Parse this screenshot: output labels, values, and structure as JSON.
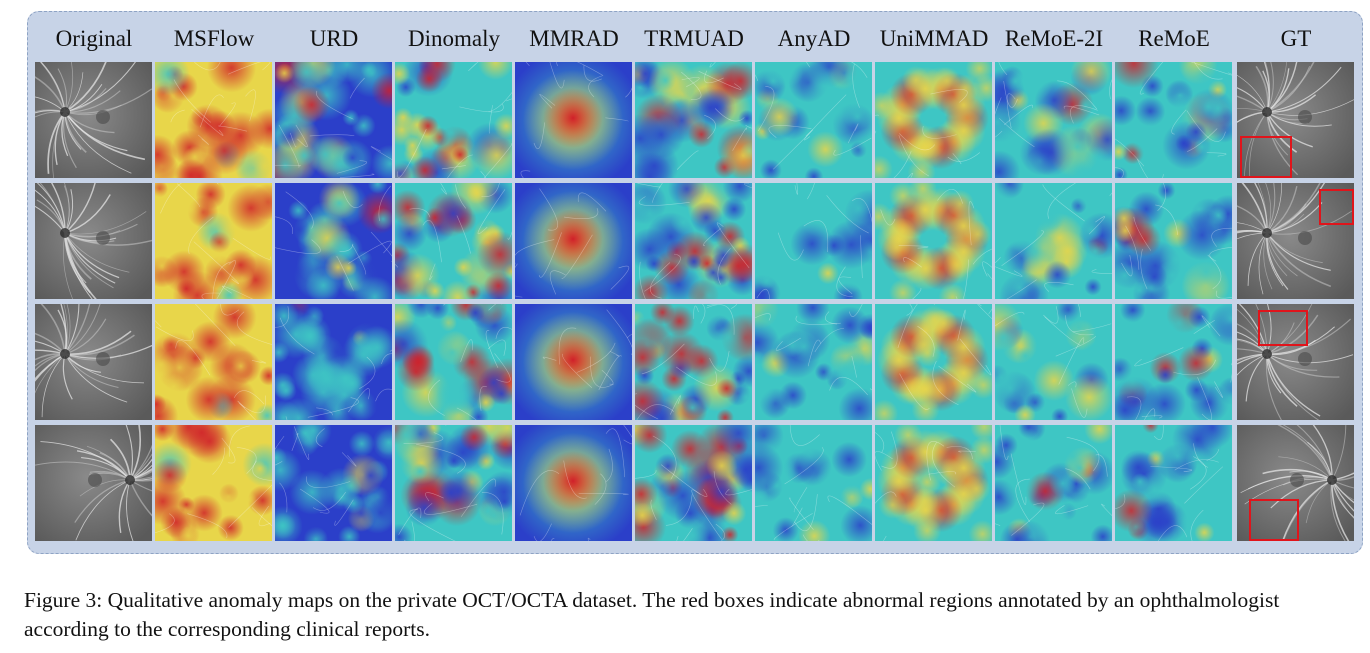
{
  "figure": {
    "columns": [
      "Original",
      "MSFlow",
      "URD",
      "Dinomaly",
      "MMRAD",
      "TRMUAD",
      "AnyAD",
      "UniMMAD",
      "ReMoE-2I",
      "ReMoE",
      "GT"
    ],
    "rows": 4,
    "caption": "Figure 3: Qualitative anomaly maps on the private OCT/OCTA dataset. The red boxes indicate abnormal regions annotated by an ophthalmologist according to the corresponding clinical reports.",
    "colors": {
      "panel_background": "#c7d3e7",
      "panel_border": "#8ea3c4",
      "annotation_box": "#e0141b",
      "heat_low": "#2b3fc9",
      "heat_mid": "#3ec6c4",
      "heat_high": "#e8d64a",
      "heat_peak": "#d0202a"
    },
    "cell_content": {
      "Original": "grayscale-fundus",
      "MSFlow": "heatmap-warm",
      "URD": "heatmap-cool-spots",
      "Dinomaly": "heatmap-mixed",
      "MMRAD": "heatmap-central-blob",
      "TRMUAD": "heatmap-mixed-warm",
      "AnyAD": "heatmap-cyan",
      "UniMMAD": "heatmap-ring",
      "ReMoE-2I": "heatmap-focal",
      "ReMoE": "heatmap-focal",
      "GT": "grayscale-fundus-with-box"
    }
  }
}
